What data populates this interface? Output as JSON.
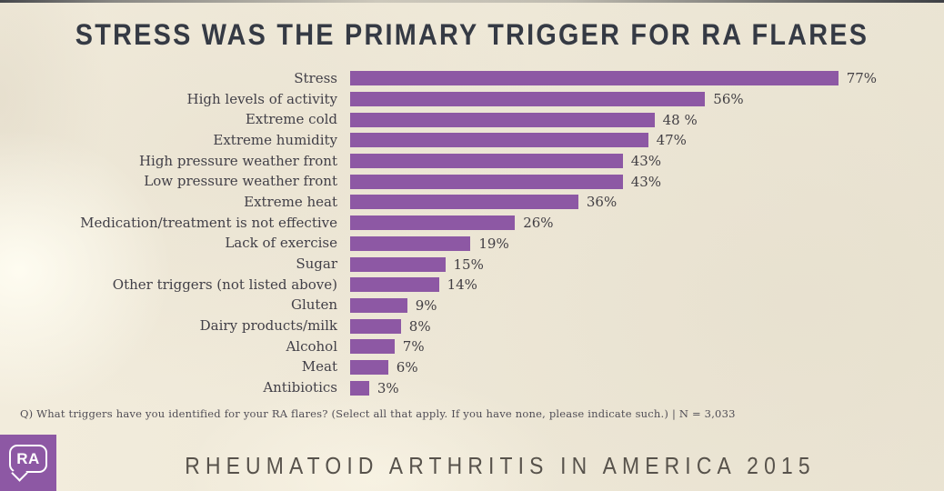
{
  "title": "STRESS WAS THE PRIMARY TRIGGER FOR RA FLARES",
  "chart_data": {
    "type": "bar",
    "orientation": "horizontal",
    "title": "STRESS WAS THE PRIMARY TRIGGER FOR RA FLARES",
    "categories": [
      "Stress",
      "High levels of activity",
      "Extreme cold",
      "Extreme humidity",
      "High pressure weather front",
      "Low pressure weather front",
      "Extreme heat",
      "Medication/treatment is not effective",
      "Lack of exercise",
      "Sugar",
      "Other triggers (not listed above)",
      "Gluten",
      "Dairy products/milk",
      "Alcohol",
      "Meat",
      "Antibiotics"
    ],
    "values": [
      77,
      56,
      48,
      47,
      43,
      43,
      36,
      26,
      19,
      15,
      14,
      9,
      8,
      7,
      6,
      3
    ],
    "value_labels": [
      "77%",
      "56%",
      "48 %",
      "47%",
      "43%",
      "43%",
      "36%",
      "26%",
      "19%",
      "15%",
      "14%",
      "9%",
      "8%",
      "7%",
      "6%",
      "3%"
    ],
    "xlim": [
      0,
      80
    ],
    "grid": false,
    "legend": false,
    "bar_color": "#8d58a4",
    "value_label_position": "right-of-bar"
  },
  "footnote": "Q) What triggers have you identified for your RA flares? (Select all that apply. If you have none, please indicate such.) | N = 3,033",
  "footer": {
    "logo_text": "RA",
    "campaign": "RHEUMATOID ARTHRITIS IN AMERICA 2015"
  },
  "colors": {
    "background": "#efe9d8",
    "bar": "#8d58a4",
    "title_text": "#353a44",
    "top_strip": "#34373d",
    "logo_background": "#8d58a4"
  }
}
